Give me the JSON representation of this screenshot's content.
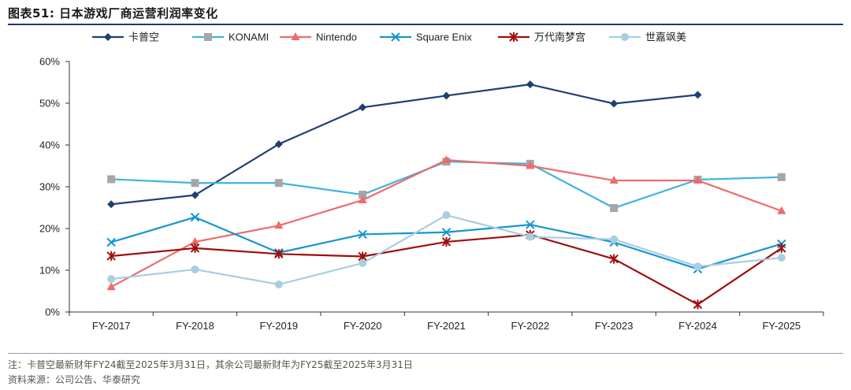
{
  "header": {
    "title": "图表51:  日本游戏厂商运营利润率变化"
  },
  "footer": {
    "note": "注：卡普空最新财年FY24截至2025年3月31日，其余公司最新财年为FY25截至2025年3月31日",
    "source": "资料来源：公司公告、华泰研究"
  },
  "chart_data": {
    "type": "line",
    "title": "日本游戏厂商运营利润率变化",
    "xlabel": "",
    "ylabel": "",
    "ylim": [
      0,
      60
    ],
    "yticks": [
      "0%",
      "10%",
      "20%",
      "30%",
      "40%",
      "50%",
      "60%"
    ],
    "categories": [
      "FY-2017",
      "FY-2018",
      "FY-2019",
      "FY-2020",
      "FY-2021",
      "FY-2022",
      "FY-2023",
      "FY-2024",
      "FY-2025"
    ],
    "legend_position": "top",
    "grid": false,
    "series": [
      {
        "name": "卡普空",
        "color": "#1f3f73",
        "marker": "diamond",
        "values": [
          25.8,
          28.0,
          40.2,
          49.0,
          51.8,
          54.5,
          49.9,
          52.0,
          null
        ]
      },
      {
        "name": "KONAMI",
        "color": "#3fb3e0",
        "marker": "square",
        "values": [
          31.8,
          30.9,
          30.9,
          28.1,
          36.0,
          35.5,
          24.9,
          31.7,
          32.3
        ]
      },
      {
        "name": "Nintendo",
        "color": "#ee6b6b",
        "marker": "triangle",
        "values": [
          6.0,
          16.8,
          20.7,
          26.8,
          36.4,
          35.0,
          31.5,
          31.5,
          24.2
        ]
      },
      {
        "name": "Square Enix",
        "color": "#1596cf",
        "marker": "x",
        "values": [
          16.7,
          22.7,
          14.2,
          18.6,
          19.1,
          20.9,
          16.7,
          10.3,
          16.3
        ]
      },
      {
        "name": "万代南梦宫",
        "color": "#a00d0d",
        "marker": "star",
        "values": [
          13.4,
          15.3,
          13.9,
          13.3,
          16.8,
          18.5,
          12.7,
          1.8,
          15.3
        ]
      },
      {
        "name": "世嘉飒美",
        "color": "#a8cee0",
        "marker": "circle",
        "values": [
          7.9,
          10.2,
          6.6,
          11.7,
          23.2,
          18.0,
          17.4,
          10.9,
          13.0
        ]
      }
    ]
  }
}
